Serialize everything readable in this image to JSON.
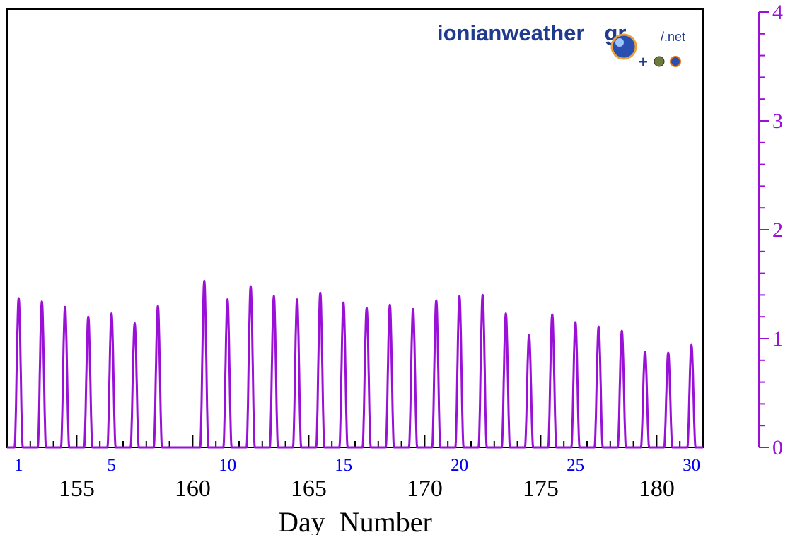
{
  "colors": {
    "series": "#9a10d6",
    "axis": "#000000",
    "day_labels": "#0000ee",
    "logo_text": "#1f3a8f",
    "background": "#ffffff"
  },
  "logo": {
    "main": "ionianweather",
    "suffix": "gr",
    "sub": "/.net"
  },
  "chart_data": {
    "type": "line",
    "title": "",
    "xlabel": "Day  Number",
    "ylabel": "",
    "grid": false,
    "xlim": [
      152,
      182
    ],
    "ylim": [
      0,
      4
    ],
    "x_ticks": [
      155,
      160,
      165,
      170,
      175,
      180
    ],
    "y_ticks": [
      0,
      1,
      2,
      3,
      4
    ],
    "day_of_month_labels": [
      {
        "day": "1",
        "x": 152.5
      },
      {
        "day": "5",
        "x": 156.5
      },
      {
        "day": "10",
        "x": 161.5
      },
      {
        "day": "15",
        "x": 166.5
      },
      {
        "day": "20",
        "x": 171.5
      },
      {
        "day": "25",
        "x": 176.5
      },
      {
        "day": "30",
        "x": 181.5
      }
    ],
    "series": [
      {
        "daily_peaks": [
          {
            "x": 152.6,
            "y": 1.37
          },
          {
            "x": 153.6,
            "y": 1.34
          },
          {
            "x": 154.6,
            "y": 1.29
          },
          {
            "x": 155.6,
            "y": 1.2
          },
          {
            "x": 156.6,
            "y": 1.23
          },
          {
            "x": 157.6,
            "y": 1.14
          },
          {
            "x": 158.6,
            "y": 1.3
          },
          {
            "x": 159.6,
            "y": 0.0
          },
          {
            "x": 160.6,
            "y": 1.53
          },
          {
            "x": 161.6,
            "y": 1.36
          },
          {
            "x": 162.6,
            "y": 1.48
          },
          {
            "x": 163.6,
            "y": 1.39
          },
          {
            "x": 164.6,
            "y": 1.36
          },
          {
            "x": 165.6,
            "y": 1.42
          },
          {
            "x": 166.6,
            "y": 1.33
          },
          {
            "x": 167.6,
            "y": 1.28
          },
          {
            "x": 168.6,
            "y": 1.31
          },
          {
            "x": 169.6,
            "y": 1.27
          },
          {
            "x": 170.6,
            "y": 1.35
          },
          {
            "x": 171.6,
            "y": 1.39
          },
          {
            "x": 172.6,
            "y": 1.4
          },
          {
            "x": 173.6,
            "y": 1.23
          },
          {
            "x": 174.6,
            "y": 1.03
          },
          {
            "x": 175.6,
            "y": 1.22
          },
          {
            "x": 176.6,
            "y": 1.15
          },
          {
            "x": 177.6,
            "y": 1.11
          },
          {
            "x": 178.6,
            "y": 1.07
          },
          {
            "x": 179.6,
            "y": 0.88
          },
          {
            "x": 180.6,
            "y": 0.87
          },
          {
            "x": 181.6,
            "y": 0.94
          }
        ]
      }
    ]
  }
}
